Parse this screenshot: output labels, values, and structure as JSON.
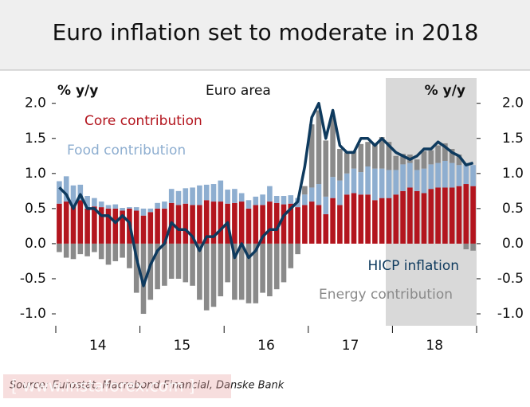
{
  "chart_data": {
    "type": "bar",
    "title": "Euro inflation set to moderate in 2018",
    "y_label": "% y/y",
    "y2_label": "% y/y",
    "subtitle": "Euro area",
    "source": "Source: Eurostat, Macrobond Financial, Danske Bank",
    "watermark": "[ www.instaforex.com ]",
    "categories": [
      null,
      null,
      null,
      null,
      null,
      null,
      "14",
      null,
      null,
      null,
      null,
      null,
      null,
      null,
      null,
      null,
      null,
      null,
      "15",
      null,
      null,
      null,
      null,
      null,
      null,
      null,
      null,
      null,
      null,
      null,
      "16",
      null,
      null,
      null,
      null,
      null,
      null,
      null,
      null,
      null,
      null,
      null,
      "17",
      null,
      null,
      null,
      null,
      null,
      null,
      null,
      null,
      null,
      null,
      null,
      "18",
      null,
      null,
      null,
      null,
      null
    ],
    "ylim": [
      -1.17,
      2.36
    ],
    "yticks": [
      {
        "value": -1.0,
        "label": "-1.0"
      },
      -0.5,
      {
        "value": 0,
        "label": "0.0"
      },
      0.5,
      {
        "value": 1.0,
        "label": "1.0"
      },
      1.5,
      {
        "value": 2.0,
        "label": "2.0"
      }
    ],
    "y2lim": [
      -1.17,
      2.36
    ],
    "y2ticks": [
      {
        "value": -1.0,
        "label": "-1.0"
      },
      -0.5,
      {
        "value": 0,
        "label": "0.0"
      },
      0.5,
      {
        "value": 1.0,
        "label": "1.0"
      },
      1.5,
      {
        "value": 2.0,
        "label": "2.0"
      }
    ],
    "series": [
      {
        "name": "Core contribution",
        "color": "#b3151e",
        "type": "bar",
        "values": [
          0.57,
          0.6,
          0.55,
          0.62,
          0.5,
          0.53,
          0.52,
          0.5,
          0.5,
          0.47,
          0.5,
          0.47,
          0.4,
          0.45,
          0.5,
          0.5,
          0.58,
          0.55,
          0.57,
          0.55,
          0.55,
          0.62,
          0.6,
          0.6,
          0.57,
          0.58,
          0.6,
          0.5,
          0.55,
          0.55,
          0.6,
          0.58,
          0.56,
          0.57,
          0.52,
          0.55,
          0.6,
          0.55,
          0.42,
          0.65,
          0.55,
          0.7,
          0.72,
          0.7,
          0.7,
          0.62,
          0.65,
          0.65,
          0.7,
          0.75,
          0.8,
          0.75,
          0.72,
          0.78,
          0.8,
          0.8,
          0.8,
          0.82,
          0.85,
          0.82
        ]
      },
      {
        "name": "Food contribution",
        "color": "#8eaed0",
        "type": "bar",
        "values": [
          0.32,
          0.36,
          0.28,
          0.22,
          0.18,
          0.12,
          0.08,
          0.05,
          0.06,
          0.04,
          0.02,
          0.05,
          0.1,
          0.05,
          0.08,
          0.1,
          0.2,
          0.2,
          0.22,
          0.25,
          0.28,
          0.22,
          0.25,
          0.3,
          0.2,
          0.2,
          0.12,
          0.12,
          0.12,
          0.15,
          0.22,
          0.1,
          0.12,
          0.12,
          0.13,
          0.15,
          0.2,
          0.3,
          0.25,
          0.3,
          0.35,
          0.3,
          0.35,
          0.32,
          0.4,
          0.45,
          0.42,
          0.4,
          0.35,
          0.38,
          0.35,
          0.3,
          0.35,
          0.35,
          0.35,
          0.38,
          0.35,
          0.3,
          0.3,
          0.3
        ]
      },
      {
        "name": "Energy contribution",
        "color": "#8a8a8a",
        "type": "bar",
        "values": [
          -0.12,
          -0.2,
          -0.22,
          -0.15,
          -0.18,
          -0.12,
          -0.22,
          -0.3,
          -0.25,
          -0.2,
          -0.35,
          -0.7,
          -1.0,
          -0.8,
          -0.65,
          -0.6,
          -0.5,
          -0.5,
          -0.55,
          -0.6,
          -0.8,
          -0.95,
          -0.9,
          -0.75,
          -0.55,
          -0.8,
          -0.8,
          -0.85,
          -0.85,
          -0.7,
          -0.75,
          -0.65,
          -0.55,
          -0.35,
          -0.15,
          0.12,
          0.9,
          1.05,
          0.8,
          0.85,
          0.45,
          0.3,
          0.25,
          0.4,
          0.35,
          0.35,
          0.45,
          0.4,
          0.2,
          0.15,
          0.12,
          0.15,
          0.25,
          0.2,
          0.25,
          0.25,
          0.2,
          0.15,
          -0.08,
          -0.1
        ]
      },
      {
        "name": "HICP inflation",
        "color": "#0e3a5e",
        "type": "line",
        "values": [
          0.8,
          0.7,
          0.5,
          0.7,
          0.5,
          0.5,
          0.4,
          0.4,
          0.3,
          0.4,
          0.3,
          -0.2,
          -0.6,
          -0.3,
          -0.1,
          0.0,
          0.3,
          0.2,
          0.2,
          0.1,
          -0.1,
          0.1,
          0.1,
          0.2,
          0.3,
          -0.2,
          0.0,
          -0.2,
          -0.1,
          0.1,
          0.2,
          0.2,
          0.4,
          0.5,
          0.6,
          1.1,
          1.8,
          2.0,
          1.5,
          1.9,
          1.4,
          1.3,
          1.3,
          1.5,
          1.5,
          1.4,
          1.5,
          1.4,
          1.3,
          1.25,
          1.2,
          1.25,
          1.35,
          1.35,
          1.45,
          1.38,
          1.3,
          1.25,
          1.12,
          1.15
        ]
      }
    ]
  }
}
